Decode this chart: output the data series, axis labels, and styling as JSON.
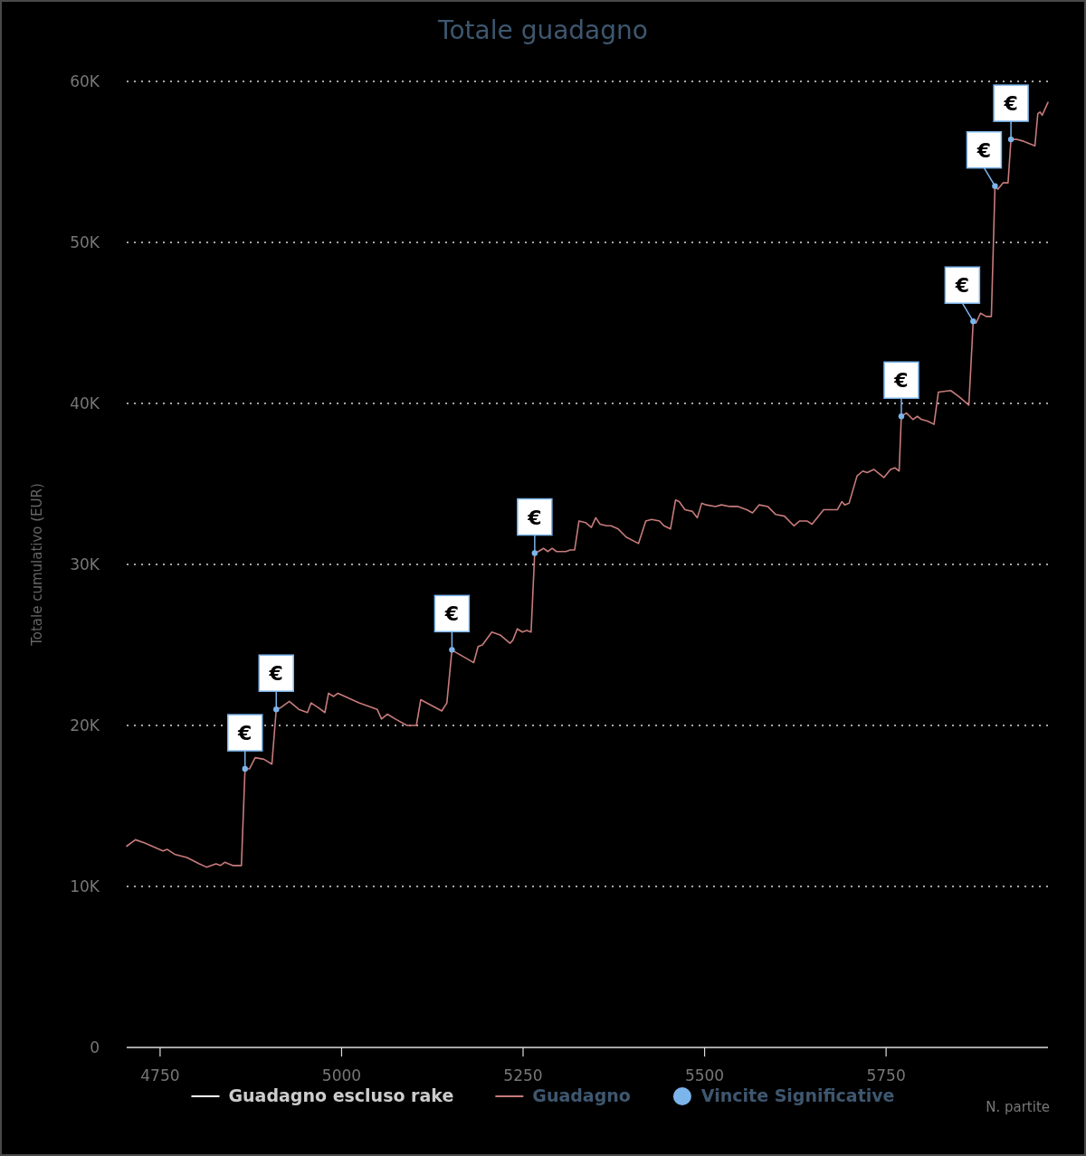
{
  "chart_data": {
    "type": "line",
    "title": "Totale guadagno",
    "xlabel": "N. partite",
    "ylabel": "Totale cumulativo (EUR)",
    "xlim": [
      4704,
      5973
    ],
    "xticks": [
      4750,
      5000,
      5250,
      5500,
      5750
    ],
    "ylim": [
      0,
      60000
    ],
    "yticks": [
      {
        "value": 0,
        "label": "0"
      },
      {
        "value": 10000,
        "label": "10K"
      },
      {
        "value": 20000,
        "label": "20K"
      },
      {
        "value": 30000,
        "label": "30K"
      },
      {
        "value": 40000,
        "label": "40K"
      },
      {
        "value": 50000,
        "label": "50K"
      },
      {
        "value": 60000,
        "label": "60K"
      }
    ],
    "grid": "y",
    "legend": "bottom",
    "series": [
      {
        "name": "Guadagno escluso rake",
        "color": "#ffffff"
      },
      {
        "name": "Guadagno",
        "color": "#c77b7b",
        "x": [
          4704,
          4716,
          4729,
          4754,
          4760,
          4770,
          4787,
          4804,
          4814,
          4827,
          4833,
          4839,
          4850,
          4862,
          4867,
          4873,
          4881,
          4893,
          4904,
          4910,
          4916,
          4928,
          4941,
          4953,
          4958,
          4968,
          4977,
          4982,
          4989,
          4995,
          5024,
          5049,
          5055,
          5063,
          5074,
          5090,
          5103,
          5109,
          5138,
          5145,
          5152,
          5155,
          5182,
          5188,
          5194,
          5207,
          5219,
          5232,
          5236,
          5242,
          5249,
          5255,
          5261,
          5266,
          5271,
          5278,
          5284,
          5290,
          5296,
          5309,
          5315,
          5321,
          5327,
          5336,
          5344,
          5350,
          5356,
          5365,
          5371,
          5381,
          5392,
          5409,
          5419,
          5427,
          5438,
          5444,
          5453,
          5460,
          5465,
          5473,
          5483,
          5490,
          5496,
          5502,
          5515,
          5523,
          5535,
          5546,
          5558,
          5566,
          5575,
          5587,
          5598,
          5610,
          5623,
          5631,
          5641,
          5648,
          5664,
          5677,
          5683,
          5689,
          5693,
          5699,
          5710,
          5718,
          5724,
          5733,
          5747,
          5756,
          5762,
          5768,
          5771,
          5778,
          5787,
          5793,
          5799,
          5807,
          5816,
          5822,
          5839,
          5851,
          5864,
          5870,
          5874,
          5880,
          5888,
          5895,
          5900,
          5904,
          5911,
          5918,
          5922,
          5930,
          5938,
          5955,
          5959,
          5962,
          5965,
          5973
        ],
        "values": [
          12500,
          12900,
          12700,
          12200,
          12300,
          12000,
          11800,
          11400,
          11200,
          11400,
          11300,
          11500,
          11300,
          11300,
          17300,
          17300,
          18000,
          17900,
          17600,
          21000,
          21100,
          21500,
          21000,
          20800,
          21400,
          21100,
          20800,
          22000,
          21800,
          22000,
          21400,
          21000,
          20400,
          20700,
          20400,
          20000,
          20000,
          21600,
          20900,
          21400,
          24700,
          24600,
          23900,
          24900,
          25000,
          25800,
          25600,
          25100,
          25300,
          26000,
          25800,
          25900,
          25800,
          30700,
          30800,
          31000,
          30800,
          31000,
          30800,
          30800,
          30900,
          30900,
          32700,
          32600,
          32300,
          32900,
          32500,
          32400,
          32400,
          32200,
          31700,
          31300,
          32700,
          32800,
          32700,
          32400,
          32200,
          34000,
          33900,
          33400,
          33300,
          32900,
          33800,
          33700,
          33600,
          33700,
          33600,
          33600,
          33400,
          33200,
          33700,
          33600,
          33100,
          33000,
          32400,
          32700,
          32700,
          32500,
          33400,
          33400,
          33400,
          33900,
          33700,
          33800,
          35500,
          35800,
          35700,
          35900,
          35400,
          35900,
          36000,
          35800,
          39200,
          39400,
          39000,
          39200,
          39000,
          38900,
          38700,
          40700,
          40800,
          40400,
          39900,
          45100,
          45000,
          45600,
          45400,
          45400,
          53500,
          53300,
          53700,
          53700,
          56400,
          56400,
          56300,
          56000,
          58000,
          58100,
          57900,
          58700
        ]
      },
      {
        "name": "Vincite Significative",
        "type": "scatter",
        "marker": "circle",
        "color": "#7cb5ec",
        "x": [
          4867,
          4910,
          5152,
          5266,
          5771,
          5870,
          5900,
          5922
        ],
        "values": [
          17300,
          21000,
          24700,
          30700,
          39200,
          45100,
          53500,
          56400
        ]
      }
    ],
    "annotations": [
      {
        "text": "€",
        "x": 4867,
        "y": 17300
      },
      {
        "text": "€",
        "x": 4910,
        "y": 21000
      },
      {
        "text": "€",
        "x": 5152,
        "y": 24700
      },
      {
        "text": "€",
        "x": 5266,
        "y": 30700
      },
      {
        "text": "€",
        "x": 5771,
        "y": 39200
      },
      {
        "text": "€",
        "x": 5870,
        "y": 45100
      },
      {
        "text": "€",
        "x": 5900,
        "y": 53500
      },
      {
        "text": "€",
        "x": 5922,
        "y": 56400
      }
    ]
  }
}
